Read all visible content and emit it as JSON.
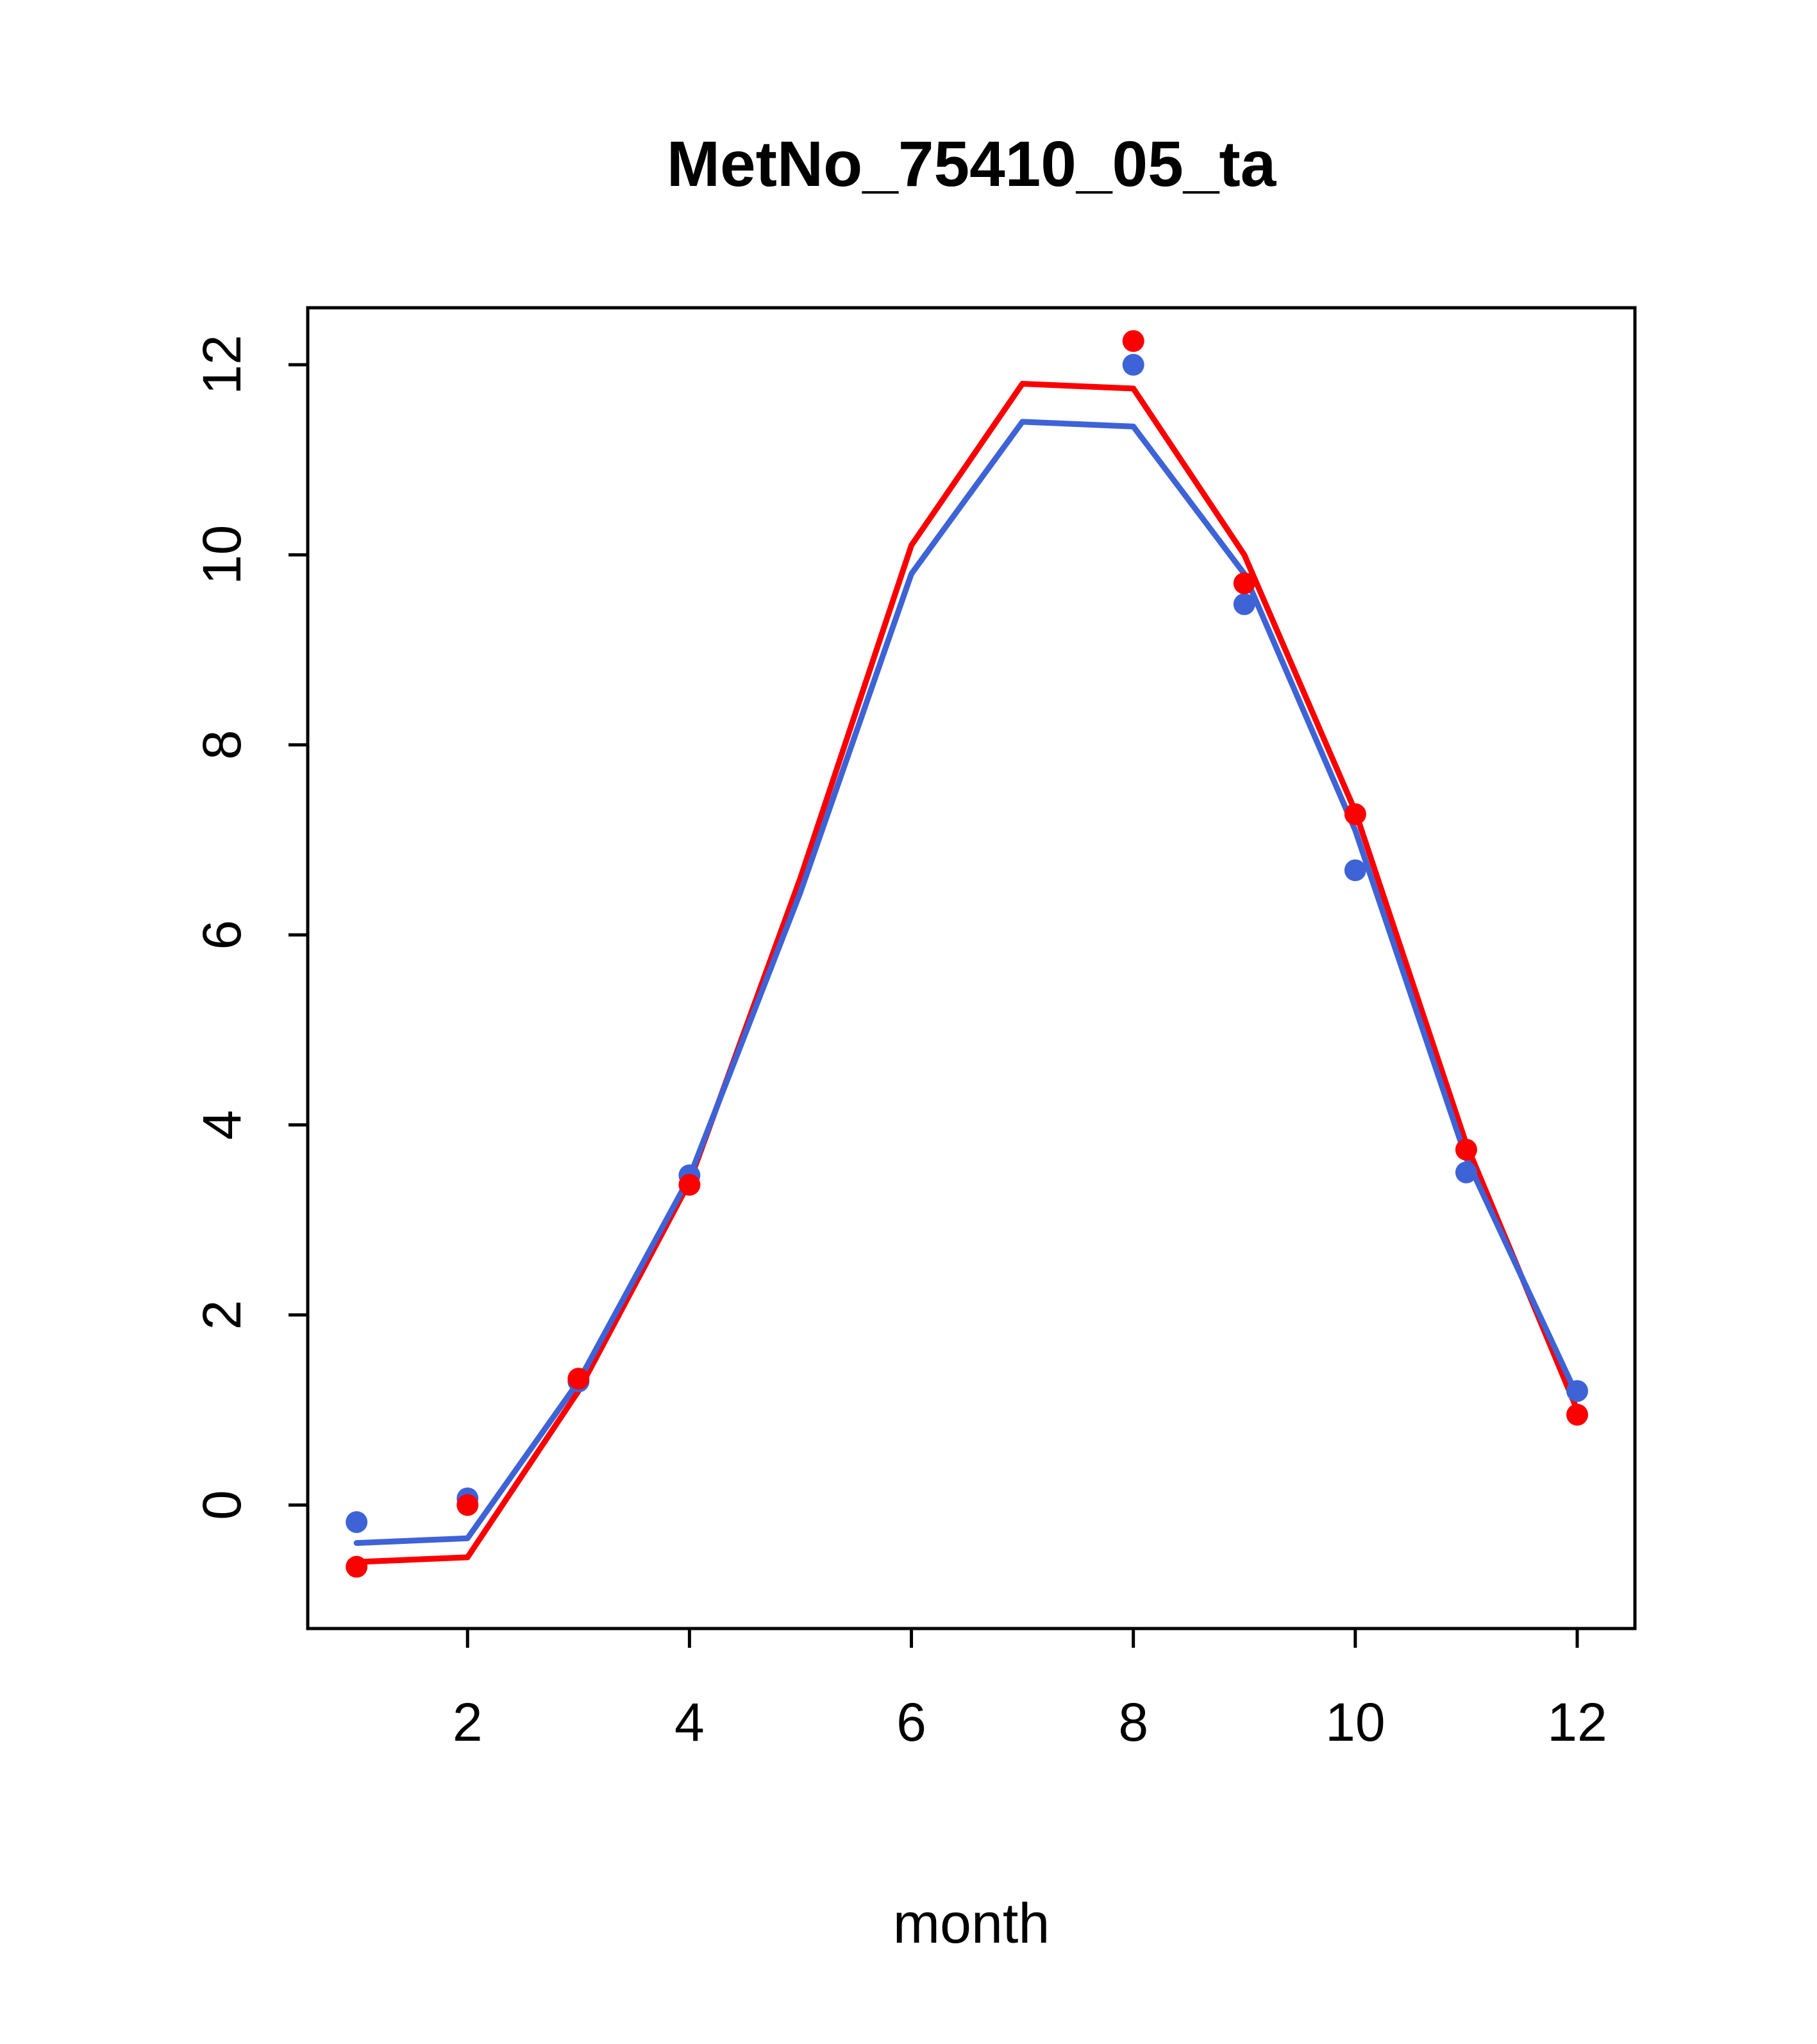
{
  "page": {
    "background": "#ffffff"
  },
  "chart_data": {
    "type": "line",
    "title": "MetNo_75410_05_ta",
    "xlabel": "month",
    "ylabel": "",
    "xlim": [
      0.56,
      12.52
    ],
    "ylim": [
      -1.3,
      12.6
    ],
    "x_ticks": [
      2,
      4,
      6,
      8,
      10,
      12
    ],
    "y_ticks": [
      0,
      2,
      4,
      6,
      8,
      10,
      12
    ],
    "grid": false,
    "legend": "none",
    "box": true,
    "axis_color": "#000000",
    "series": [
      {
        "name": "red-line",
        "kind": "line",
        "color": "#fb0000",
        "x": [
          1,
          2,
          3,
          4,
          5,
          6,
          7,
          8,
          9,
          10,
          11,
          12
        ],
        "y": [
          -0.6,
          -0.55,
          1.2,
          3.4,
          6.6,
          10.1,
          11.8,
          11.75,
          10.0,
          7.3,
          3.8,
          1.0
        ]
      },
      {
        "name": "blue-line",
        "kind": "line",
        "color": "#3e63d6",
        "x": [
          1,
          2,
          3,
          4,
          5,
          6,
          7,
          8,
          9,
          10,
          11,
          12
        ],
        "y": [
          -0.4,
          -0.35,
          1.3,
          3.45,
          6.45,
          9.8,
          11.4,
          11.35,
          9.8,
          7.1,
          3.65,
          1.15
        ]
      },
      {
        "name": "blue-points",
        "kind": "scatter",
        "color": "#3e63d6",
        "x": [
          1,
          2,
          3,
          4,
          8,
          9,
          10,
          11,
          12
        ],
        "y": [
          -0.18,
          0.07,
          1.3,
          3.47,
          12.0,
          9.48,
          6.68,
          3.5,
          1.2
        ]
      },
      {
        "name": "red-points",
        "kind": "scatter",
        "color": "#fb0000",
        "x": [
          1,
          2,
          3,
          4,
          8,
          9,
          10,
          11,
          12
        ],
        "y": [
          -0.65,
          0.0,
          1.33,
          3.37,
          12.25,
          9.7,
          7.27,
          3.74,
          0.95
        ]
      }
    ]
  }
}
